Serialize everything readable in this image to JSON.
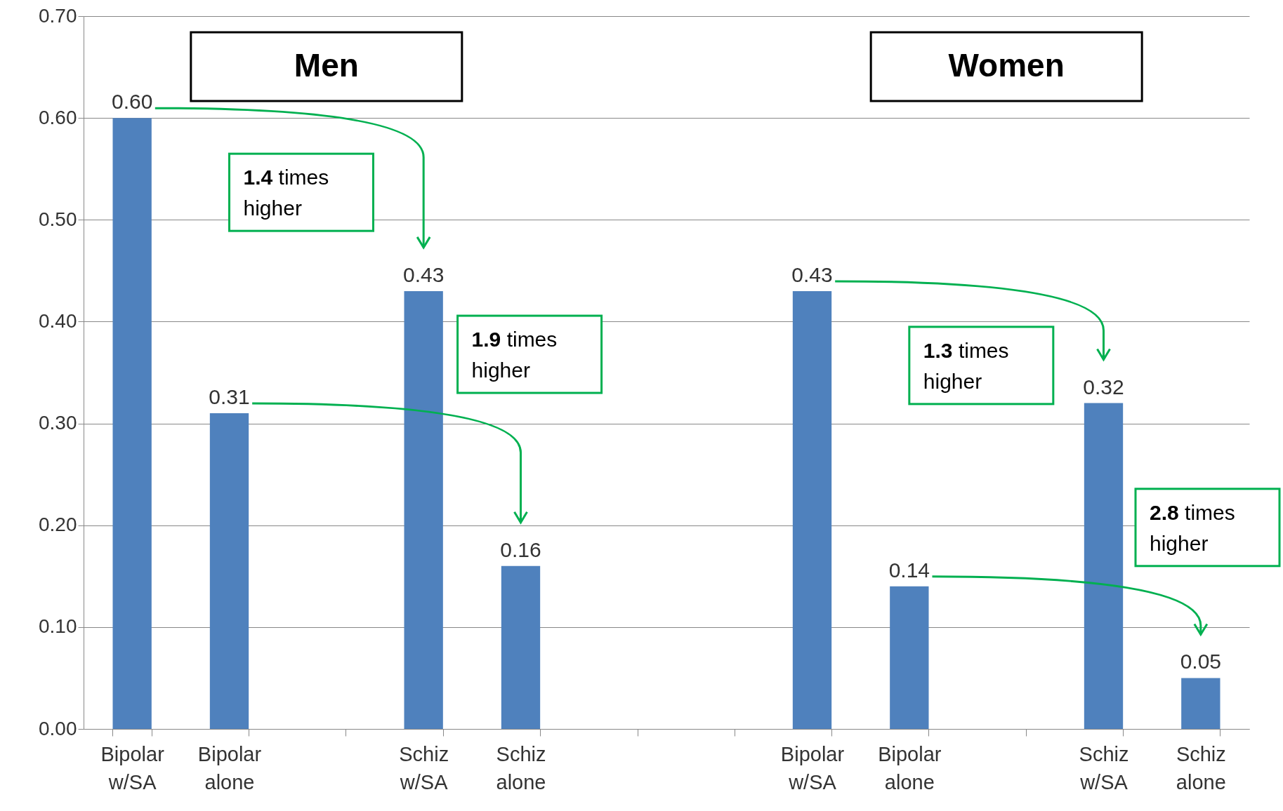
{
  "chart_data": {
    "type": "bar",
    "categories": [
      "Bipolar w/SA",
      "Bipolar alone",
      null,
      "Schiz w/SA",
      "Schiz alone",
      null,
      null,
      "Bipolar w/SA",
      "Bipolar alone",
      null,
      "Schiz w/SA",
      "Schiz alone"
    ],
    "values": [
      0.6,
      0.31,
      null,
      0.43,
      0.16,
      null,
      null,
      0.43,
      0.14,
      null,
      0.32,
      0.05
    ],
    "color": "#4f81bd",
    "ylim": [
      0,
      0.7
    ],
    "yticks": [
      {
        "value": 0,
        "label": "0.00"
      },
      {
        "value": 0.1,
        "label": "0.10"
      },
      {
        "value": 0.2,
        "label": "0.20"
      },
      {
        "value": 0.3,
        "label": "0.30"
      },
      {
        "value": 0.4,
        "label": "0.40"
      },
      {
        "value": 0.5,
        "label": "0.50"
      },
      {
        "value": 0.6,
        "label": "0.60"
      },
      {
        "value": 0.7,
        "label": "0.70"
      }
    ],
    "grid": "y",
    "value_labels": [
      "0.60",
      "0.31",
      null,
      "0.43",
      "0.16",
      null,
      null,
      "0.43",
      "0.14",
      null,
      "0.32",
      "0.05"
    ],
    "annotations": [
      "Men",
      "Women",
      "1.4 times higher",
      "1.9 times higher",
      "1.3 times higher",
      "2.8 times higher"
    ]
  }
}
